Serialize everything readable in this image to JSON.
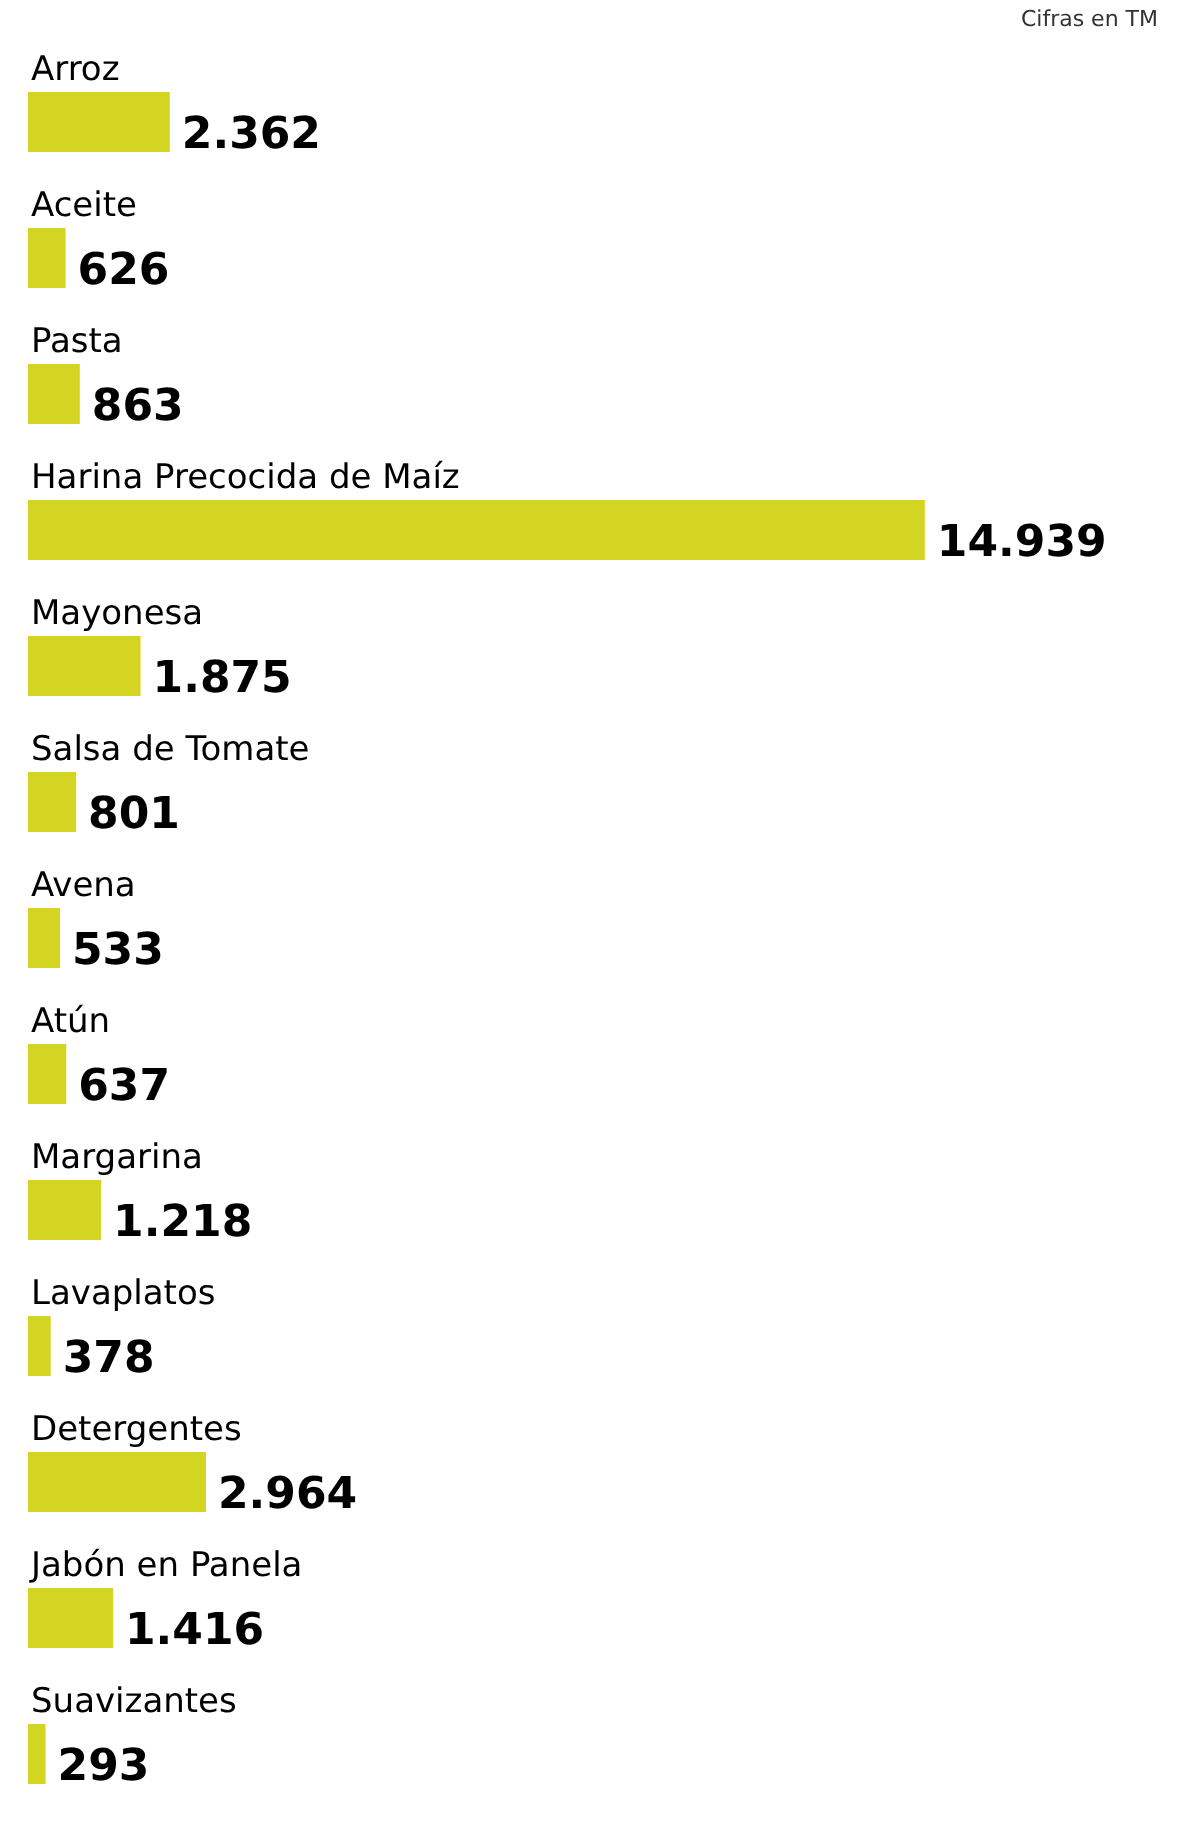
{
  "chart_data": {
    "type": "bar",
    "orientation": "horizontal",
    "annotations": [
      "Cifras en TM"
    ],
    "categories": [
      "Arroz",
      "Aceite",
      "Pasta",
      "Harina Precocida de Maíz",
      "Mayonesa",
      "Salsa de Tomate",
      "Avena",
      "Atún",
      "Margarina",
      "Lavaplatos",
      "Detergentes",
      "Jabón en Panela",
      "Suavizantes"
    ],
    "values": [
      2362,
      626,
      863,
      14939,
      1875,
      801,
      533,
      637,
      1218,
      378,
      2964,
      1416,
      293
    ],
    "value_labels": [
      "2.362",
      "626",
      "863",
      "14.939",
      "1.875",
      "801",
      "533",
      "637",
      "1.218",
      "378",
      "2.964",
      "1.416",
      "293"
    ],
    "color": "#d4d423"
  }
}
